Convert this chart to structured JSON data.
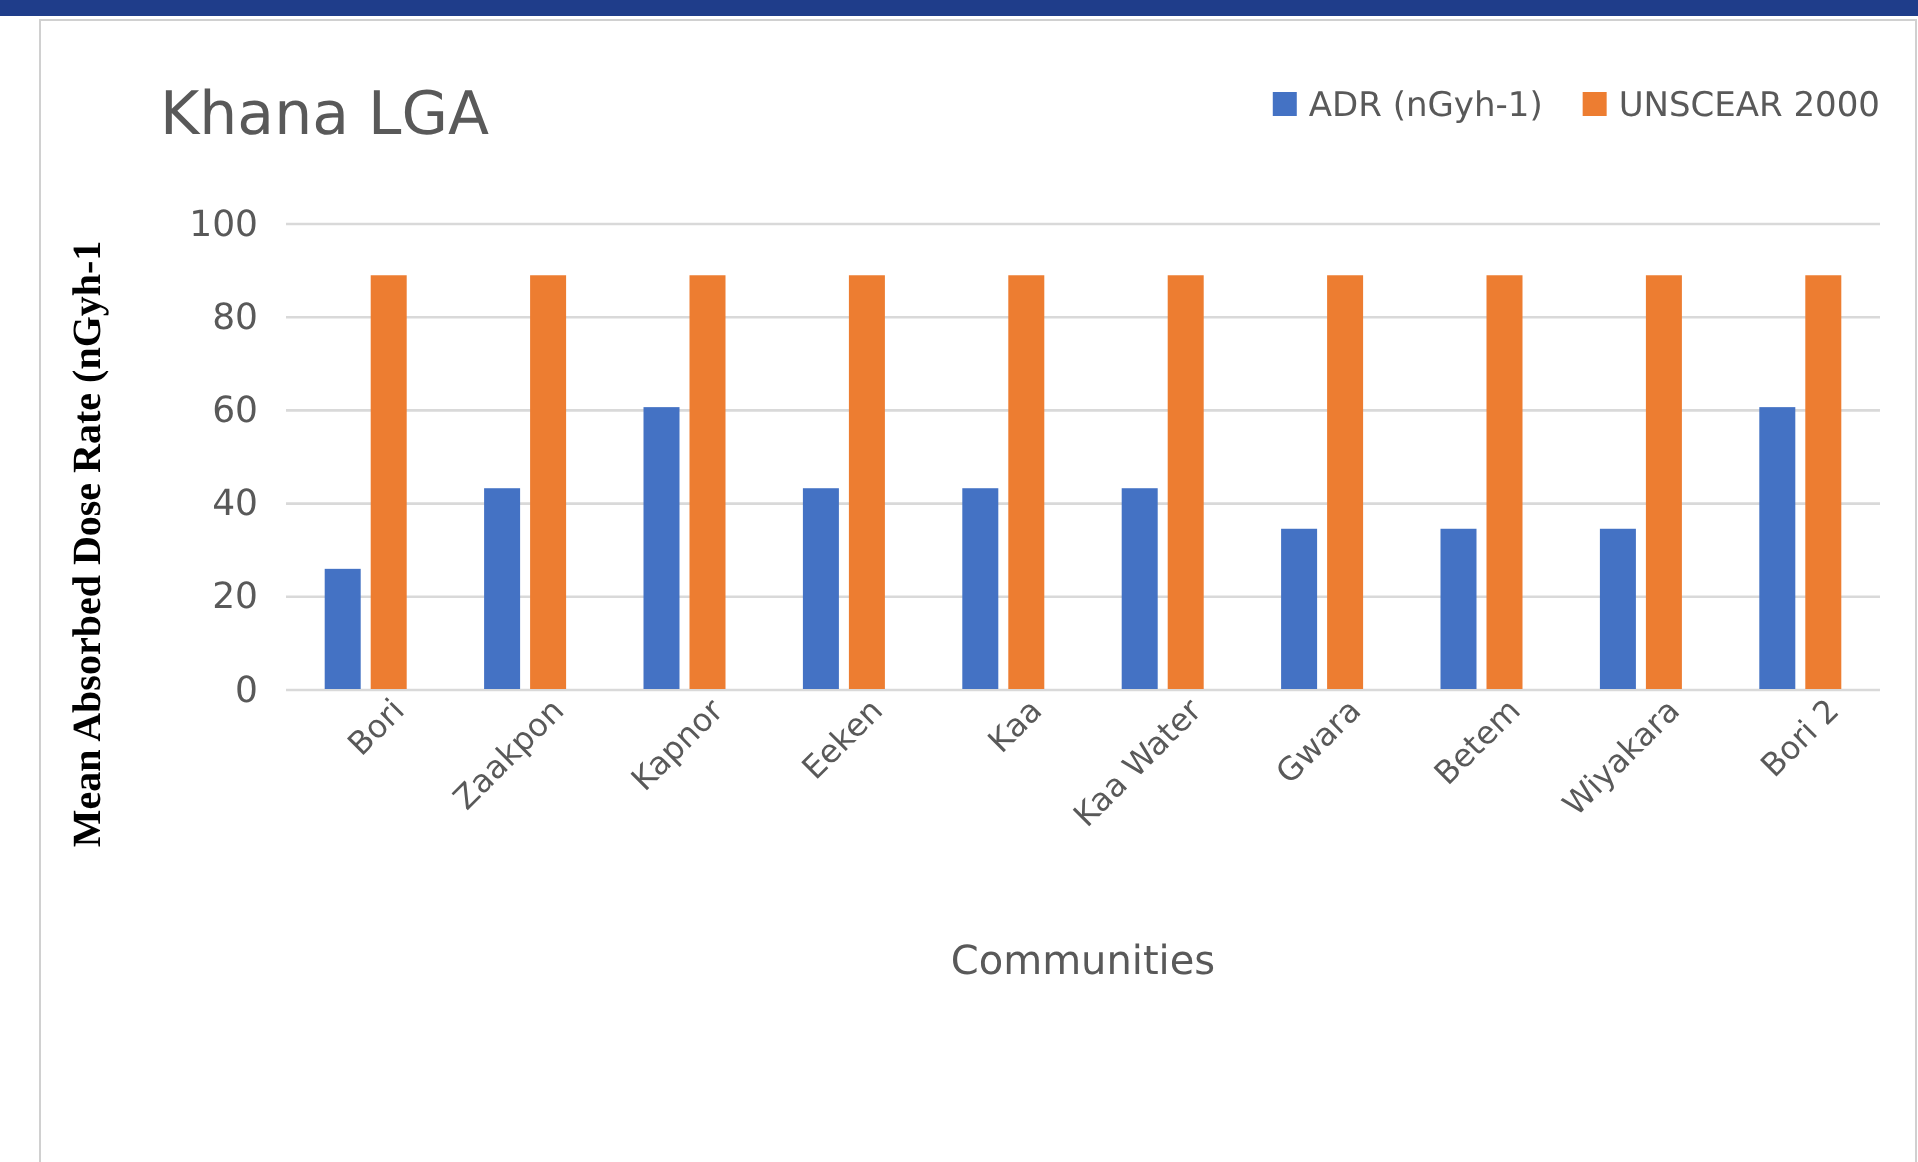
{
  "chart_data": {
    "type": "bar",
    "title": "Khana LGA",
    "xlabel": "Communities",
    "ylabel": "Mean Absorbed Dose Rate (nGyh-1",
    "categories": [
      "Bori",
      "Zaakpon",
      "Kapnor",
      "Eeken",
      "Kaa",
      "Kaa Water",
      "Gwara",
      "Betem",
      "Wiyakara",
      "Bori 2"
    ],
    "series": [
      {
        "name": "ADR (nGyh-1)",
        "color": "#4472c4",
        "values": [
          26,
          43.3,
          60.7,
          43.3,
          43.3,
          43.3,
          34.6,
          34.6,
          34.6,
          60.7
        ]
      },
      {
        "name": "UNSCEAR 2000",
        "color": "#ed7d31",
        "values": [
          89,
          89,
          89,
          89,
          89,
          89,
          89,
          89,
          89,
          89
        ]
      }
    ],
    "ylim": [
      0,
      100
    ],
    "yticks": [
      0,
      20,
      40,
      60,
      80,
      100
    ],
    "grid": "y",
    "legend": "top right"
  }
}
